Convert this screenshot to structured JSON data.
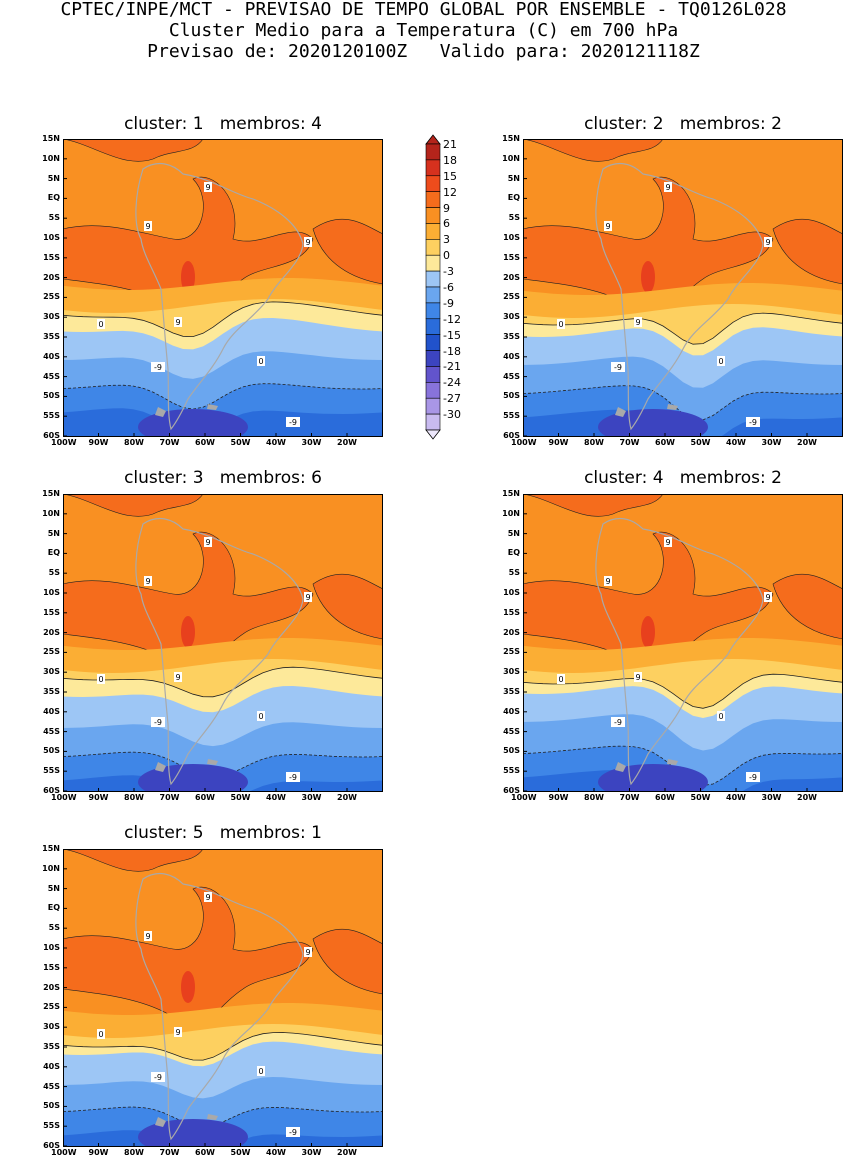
{
  "header": {
    "line1": "CPTEC/INPE/MCT - PREVISAO DE TEMPO GLOBAL POR ENSEMBLE - TQ0126L028",
    "line2": "Cluster Medio para a Temperatura (C) em 700 hPa",
    "line3": "Previsao de: 2020120100Z   Valido para: 2020121118Z"
  },
  "axes": {
    "lat_labels": [
      "15N",
      "10N",
      "5N",
      "EQ",
      "5S",
      "10S",
      "15S",
      "20S",
      "25S",
      "30S",
      "35S",
      "40S",
      "45S",
      "50S",
      "55S",
      "60S"
    ],
    "lon_labels": [
      "100W",
      "90W",
      "80W",
      "70W",
      "60W",
      "50W",
      "40W",
      "30W",
      "20W"
    ]
  },
  "colorbar": {
    "labels": [
      "21",
      "18",
      "15",
      "12",
      "9",
      "6",
      "3",
      "0",
      "-3",
      "-6",
      "-9",
      "-12",
      "-15",
      "-18",
      "-21",
      "-24",
      "-27",
      "-30"
    ],
    "colors": [
      "#b4241b",
      "#d6311e",
      "#ee4c1c",
      "#f56c1c",
      "#f99022",
      "#fbae34",
      "#fdd060",
      "#fde99a",
      "#9dc6f5",
      "#6aa6ef",
      "#3f86e7",
      "#2a6cdb",
      "#2152cb",
      "#3c44c0",
      "#6254cc",
      "#8873db",
      "#a996e6",
      "#c9bbf0"
    ]
  },
  "panels": [
    {
      "title": "cluster: 1   membros: 4",
      "labels": {
        "nine": [
          "9",
          "9",
          "9",
          "9"
        ],
        "zero": [
          "0",
          "0"
        ],
        "neg": [
          "-9",
          "-9"
        ]
      }
    },
    {
      "title": "cluster: 2   membros: 2",
      "labels": {
        "nine": [
          "9",
          "9",
          "9",
          "9"
        ],
        "zero": [
          "0",
          "0"
        ],
        "neg": [
          "-9",
          "-9"
        ]
      }
    },
    {
      "title": "cluster: 3   membros: 6",
      "labels": {
        "nine": [
          "9",
          "9",
          "9",
          "9"
        ],
        "zero": [
          "0",
          "0"
        ],
        "neg": [
          "-9",
          "-9"
        ]
      }
    },
    {
      "title": "cluster: 4   membros: 2",
      "labels": {
        "nine": [
          "9",
          "9",
          "9",
          "9"
        ],
        "zero": [
          "0",
          "0"
        ],
        "neg": [
          "-9",
          "-9"
        ]
      }
    },
    {
      "title": "cluster: 5   membros: 1",
      "labels": {
        "nine": [
          "9",
          "9",
          "9",
          "9"
        ],
        "zero": [
          "0",
          "0"
        ],
        "neg": [
          "-9",
          "-9"
        ]
      }
    }
  ]
}
